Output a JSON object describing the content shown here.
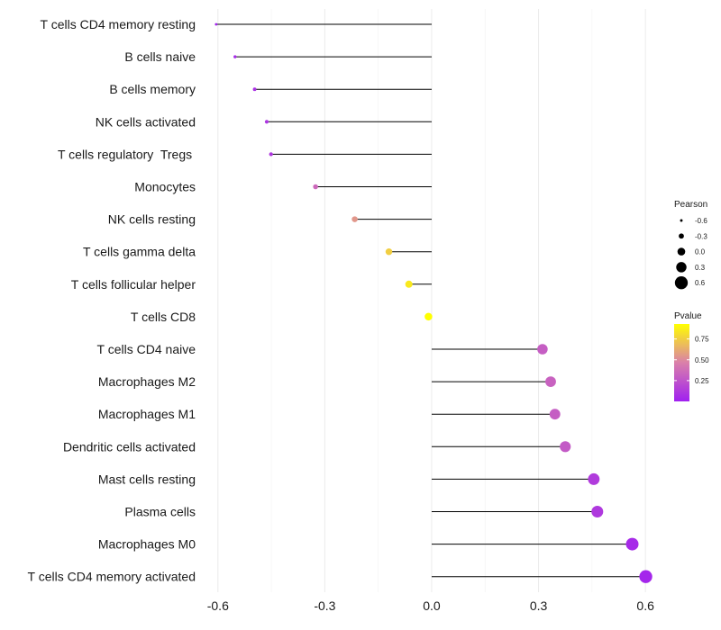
{
  "chart_data": {
    "type": "lollipop",
    "title": "",
    "xlabel": "",
    "ylabel": "",
    "xlim": [
      -0.64,
      0.63
    ],
    "x_ticks": [
      -0.6,
      -0.3,
      0.0,
      0.3,
      0.6
    ],
    "x_tick_labels": [
      "-0.6",
      "-0.3",
      "0.0",
      "0.3",
      "0.6"
    ],
    "grid": true,
    "categories": [
      "T cells CD4 memory resting",
      "B cells naive",
      "B cells memory",
      "NK cells activated",
      "T cells regulatory  Tregs ",
      "Monocytes",
      "NK cells resting",
      "T cells gamma delta",
      "T cells follicular helper",
      "T cells CD8",
      "T cells CD4 naive",
      "Macrophages M2",
      "Macrophages M1",
      "Dendritic cells activated",
      "Mast cells resting",
      "Plasma cells",
      "Macrophages M0",
      "T cells CD4 memory activated"
    ],
    "pearson": [
      -0.605,
      -0.552,
      -0.497,
      -0.463,
      -0.451,
      -0.326,
      -0.216,
      -0.12,
      -0.064,
      -0.009,
      0.311,
      0.334,
      0.346,
      0.375,
      0.455,
      0.465,
      0.563,
      0.601
    ],
    "pvalue": [
      0.02,
      0.05,
      0.08,
      0.1,
      0.11,
      0.35,
      0.55,
      0.75,
      0.85,
      0.96,
      0.3,
      0.32,
      0.3,
      0.28,
      0.13,
      0.12,
      0.05,
      0.03
    ],
    "size_legend": {
      "title": "Pearson",
      "values": [
        -0.6,
        -0.3,
        0.0,
        0.3,
        0.6
      ],
      "labels": [
        "-0.6",
        "-0.3",
        "0.0",
        "0.3",
        "0.6"
      ]
    },
    "color_legend": {
      "title": "Pvalue",
      "range": [
        0.0,
        0.93
      ],
      "ticks": [
        0.25,
        0.5,
        0.75
      ],
      "tick_labels": [
        "0.25",
        "0.50",
        "0.75"
      ],
      "low_color": "#a020f0",
      "high_color": "#ffff00"
    },
    "stem_color": "#000000",
    "legend_position": "right"
  }
}
